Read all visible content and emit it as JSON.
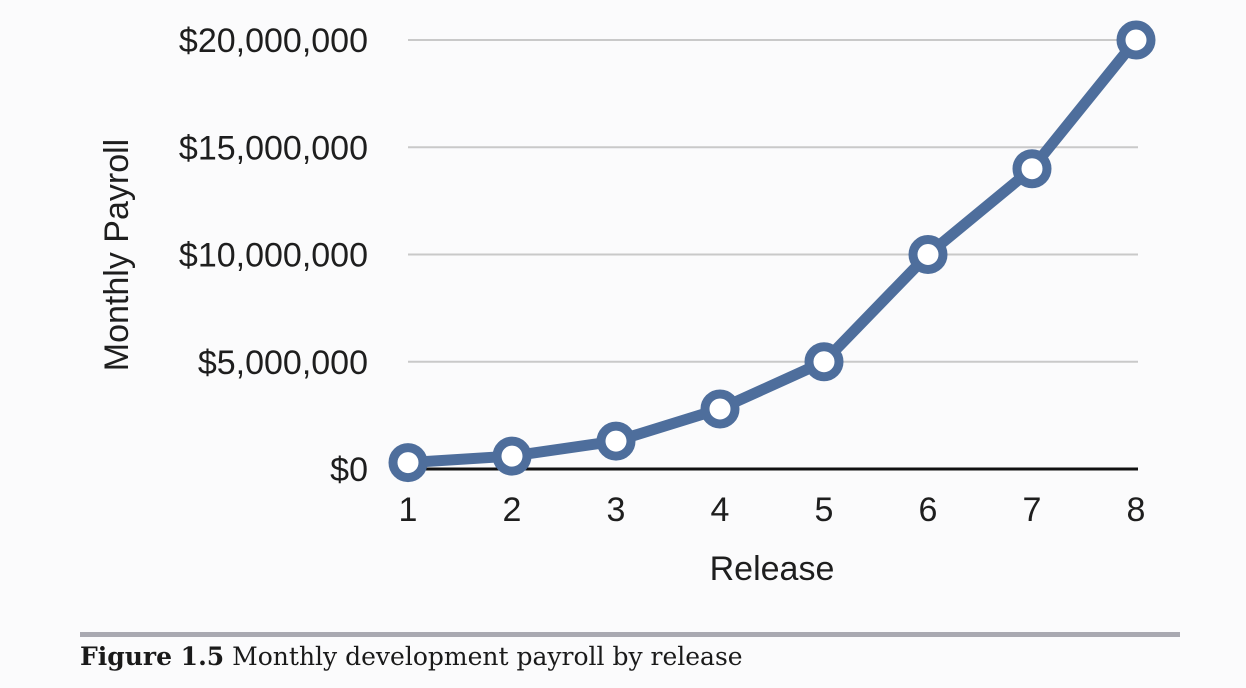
{
  "chart_data": {
    "type": "line",
    "xlabel": "Release",
    "ylabel": "Monthly Payroll",
    "x": [
      1,
      2,
      3,
      4,
      5,
      6,
      7,
      8
    ],
    "series": [
      {
        "values": [
          300000,
          600000,
          1300000,
          2800000,
          5000000,
          10000000,
          14000000,
          20000000
        ]
      }
    ],
    "ylim": [
      0,
      20000000
    ],
    "y_ticks": [
      0,
      5000000,
      10000000,
      15000000,
      20000000
    ],
    "y_tick_labels": [
      "$0",
      "$5,000,000",
      "$10,000,000",
      "$15,000,000",
      "$20,000,000"
    ],
    "x_tick_labels": [
      "1",
      "2",
      "3",
      "4",
      "5",
      "6",
      "7",
      "8"
    ],
    "grid": true,
    "colors": {
      "line": "#4e6e9c",
      "marker_fill": "#ffffff",
      "gridline": "#c9c9c9",
      "axis": "#111111"
    }
  },
  "caption": {
    "label": "Figure 1.5",
    "text": "Monthly development payroll by release"
  }
}
